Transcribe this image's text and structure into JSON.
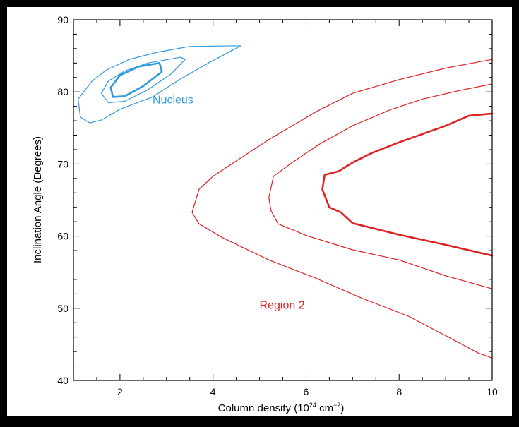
{
  "chart_data": {
    "type": "contour",
    "xlabel": "Column density (10",
    "xlabel_exp": "24",
    "xlabel_unit": " cm",
    "xlabel_unit_exp": "−2",
    "xlabel_close": ")",
    "ylabel": "Inclination Angle (Degrees)",
    "xlim": [
      1,
      10
    ],
    "ylim": [
      40,
      90
    ],
    "xticks": [
      "2",
      "4",
      "6",
      "8",
      "10"
    ],
    "yticks": [
      "40",
      "50",
      "60",
      "70",
      "80",
      "90"
    ],
    "xtick_values": [
      2,
      4,
      6,
      8,
      10
    ],
    "ytick_values": [
      40,
      50,
      60,
      70,
      80,
      90
    ],
    "grid": false,
    "annotations": [
      {
        "text": "Nucleus",
        "x": 2.7,
        "y": 79,
        "color": "#3399dd"
      },
      {
        "text": "Region 2",
        "x": 5.0,
        "y": 50.5,
        "color": "#dd2222"
      }
    ],
    "series": [
      {
        "group": "nucleus",
        "color": "#3399dd",
        "weight": "thin",
        "points": [
          [
            4.6,
            86.4
          ],
          [
            3.5,
            86.3
          ],
          [
            2.8,
            85.5
          ],
          [
            2.2,
            84.5
          ],
          [
            1.7,
            83.0
          ],
          [
            1.4,
            81.5
          ],
          [
            1.1,
            79.0
          ],
          [
            1.15,
            76.5
          ],
          [
            1.35,
            75.7
          ],
          [
            1.6,
            76.1
          ],
          [
            2.0,
            77.6
          ],
          [
            2.7,
            79.3
          ],
          [
            3.3,
            81.8
          ],
          [
            3.9,
            84.0
          ],
          [
            4.6,
            86.4
          ]
        ]
      },
      {
        "group": "nucleus",
        "color": "#3399dd",
        "weight": "thin",
        "points": [
          [
            3.3,
            84.8
          ],
          [
            2.6,
            84.0
          ],
          [
            2.1,
            82.9
          ],
          [
            1.75,
            81.5
          ],
          [
            1.6,
            79.8
          ],
          [
            1.75,
            78.5
          ],
          [
            2.1,
            78.7
          ],
          [
            2.6,
            80.3
          ],
          [
            3.1,
            82.5
          ],
          [
            3.4,
            84.5
          ],
          [
            3.3,
            84.8
          ]
        ]
      },
      {
        "group": "nucleus",
        "color": "#3399dd",
        "weight": "thick",
        "points": [
          [
            2.85,
            84.0
          ],
          [
            2.4,
            83.5
          ],
          [
            2.0,
            82.3
          ],
          [
            1.8,
            80.6
          ],
          [
            1.85,
            79.3
          ],
          [
            2.1,
            79.4
          ],
          [
            2.5,
            80.8
          ],
          [
            2.9,
            82.8
          ],
          [
            2.85,
            84.0
          ]
        ]
      },
      {
        "group": "region-2",
        "color": "#dd2222",
        "weight": "thin",
        "points": [
          [
            10,
            84.5
          ],
          [
            9.0,
            83.3
          ],
          [
            8.0,
            81.7
          ],
          [
            7.0,
            79.8
          ],
          [
            6.2,
            77.2
          ],
          [
            5.2,
            73.4
          ],
          [
            4.4,
            70.0
          ],
          [
            4.0,
            68.3
          ],
          [
            3.7,
            66.5
          ],
          [
            3.55,
            63.3
          ],
          [
            3.7,
            61.7
          ],
          [
            4.2,
            59.8
          ],
          [
            5.2,
            56.7
          ],
          [
            6.2,
            54.2
          ],
          [
            7.2,
            51.4
          ],
          [
            8.2,
            48.9
          ],
          [
            9.0,
            46.2
          ],
          [
            9.7,
            43.8
          ],
          [
            10,
            43.1
          ]
        ]
      },
      {
        "group": "region-2",
        "color": "#dd2222",
        "weight": "thin",
        "points": [
          [
            10,
            81.1
          ],
          [
            9.3,
            80.2
          ],
          [
            8.5,
            79.0
          ],
          [
            7.8,
            77.5
          ],
          [
            7.0,
            75.3
          ],
          [
            6.3,
            72.8
          ],
          [
            5.7,
            70.2
          ],
          [
            5.3,
            68.3
          ],
          [
            5.2,
            65.3
          ],
          [
            5.25,
            63.5
          ],
          [
            5.4,
            61.7
          ],
          [
            6.0,
            60.1
          ],
          [
            7.0,
            58.1
          ],
          [
            8.0,
            56.7
          ],
          [
            9.0,
            54.5
          ],
          [
            10,
            52.7
          ]
        ]
      },
      {
        "group": "region-2",
        "color": "#dd2222",
        "weight": "thick",
        "points": [
          [
            10,
            77.0
          ],
          [
            9.5,
            76.7
          ],
          [
            9.0,
            75.3
          ],
          [
            8.0,
            73.0
          ],
          [
            7.4,
            71.5
          ],
          [
            7.0,
            70.2
          ],
          [
            6.7,
            69.0
          ],
          [
            6.4,
            68.5
          ],
          [
            6.35,
            66.5
          ],
          [
            6.5,
            64.0
          ],
          [
            6.75,
            63.3
          ],
          [
            7.0,
            61.8
          ],
          [
            7.5,
            61.0
          ],
          [
            8.0,
            60.2
          ],
          [
            9.0,
            58.8
          ],
          [
            10,
            57.3
          ]
        ]
      }
    ]
  }
}
